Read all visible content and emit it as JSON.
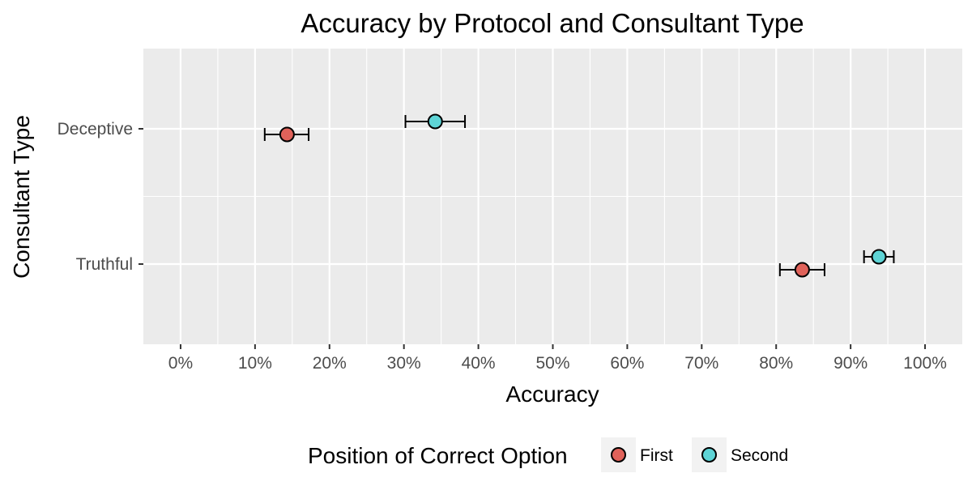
{
  "chart_data": {
    "type": "scatter",
    "title": "Accuracy by Protocol and Consultant Type",
    "xlabel": "Accuracy",
    "ylabel": "Consultant Type",
    "xlim": [
      -0.05,
      1.05
    ],
    "x_ticks": [
      0,
      0.1,
      0.2,
      0.3,
      0.4,
      0.5,
      0.6,
      0.7,
      0.8,
      0.9,
      1.0
    ],
    "x_tick_labels": [
      "0%",
      "10%",
      "20%",
      "30%",
      "40%",
      "50%",
      "60%",
      "70%",
      "80%",
      "90%",
      "100%"
    ],
    "categories": [
      "Deceptive",
      "Truthful"
    ],
    "grid": true,
    "legend": {
      "title": "Position of Correct Option",
      "placement": "bottom"
    },
    "series": [
      {
        "name": "First",
        "color": "#e0625a",
        "points": [
          {
            "category": "Deceptive",
            "x": 0.143,
            "xmin": 0.113,
            "xmax": 0.172
          },
          {
            "category": "Truthful",
            "x": 0.835,
            "xmin": 0.805,
            "xmax": 0.865
          }
        ]
      },
      {
        "name": "Second",
        "color": "#5ed4d6",
        "points": [
          {
            "category": "Deceptive",
            "x": 0.342,
            "xmin": 0.302,
            "xmax": 0.382
          },
          {
            "category": "Truthful",
            "x": 0.938,
            "xmin": 0.918,
            "xmax": 0.958
          }
        ]
      }
    ]
  }
}
